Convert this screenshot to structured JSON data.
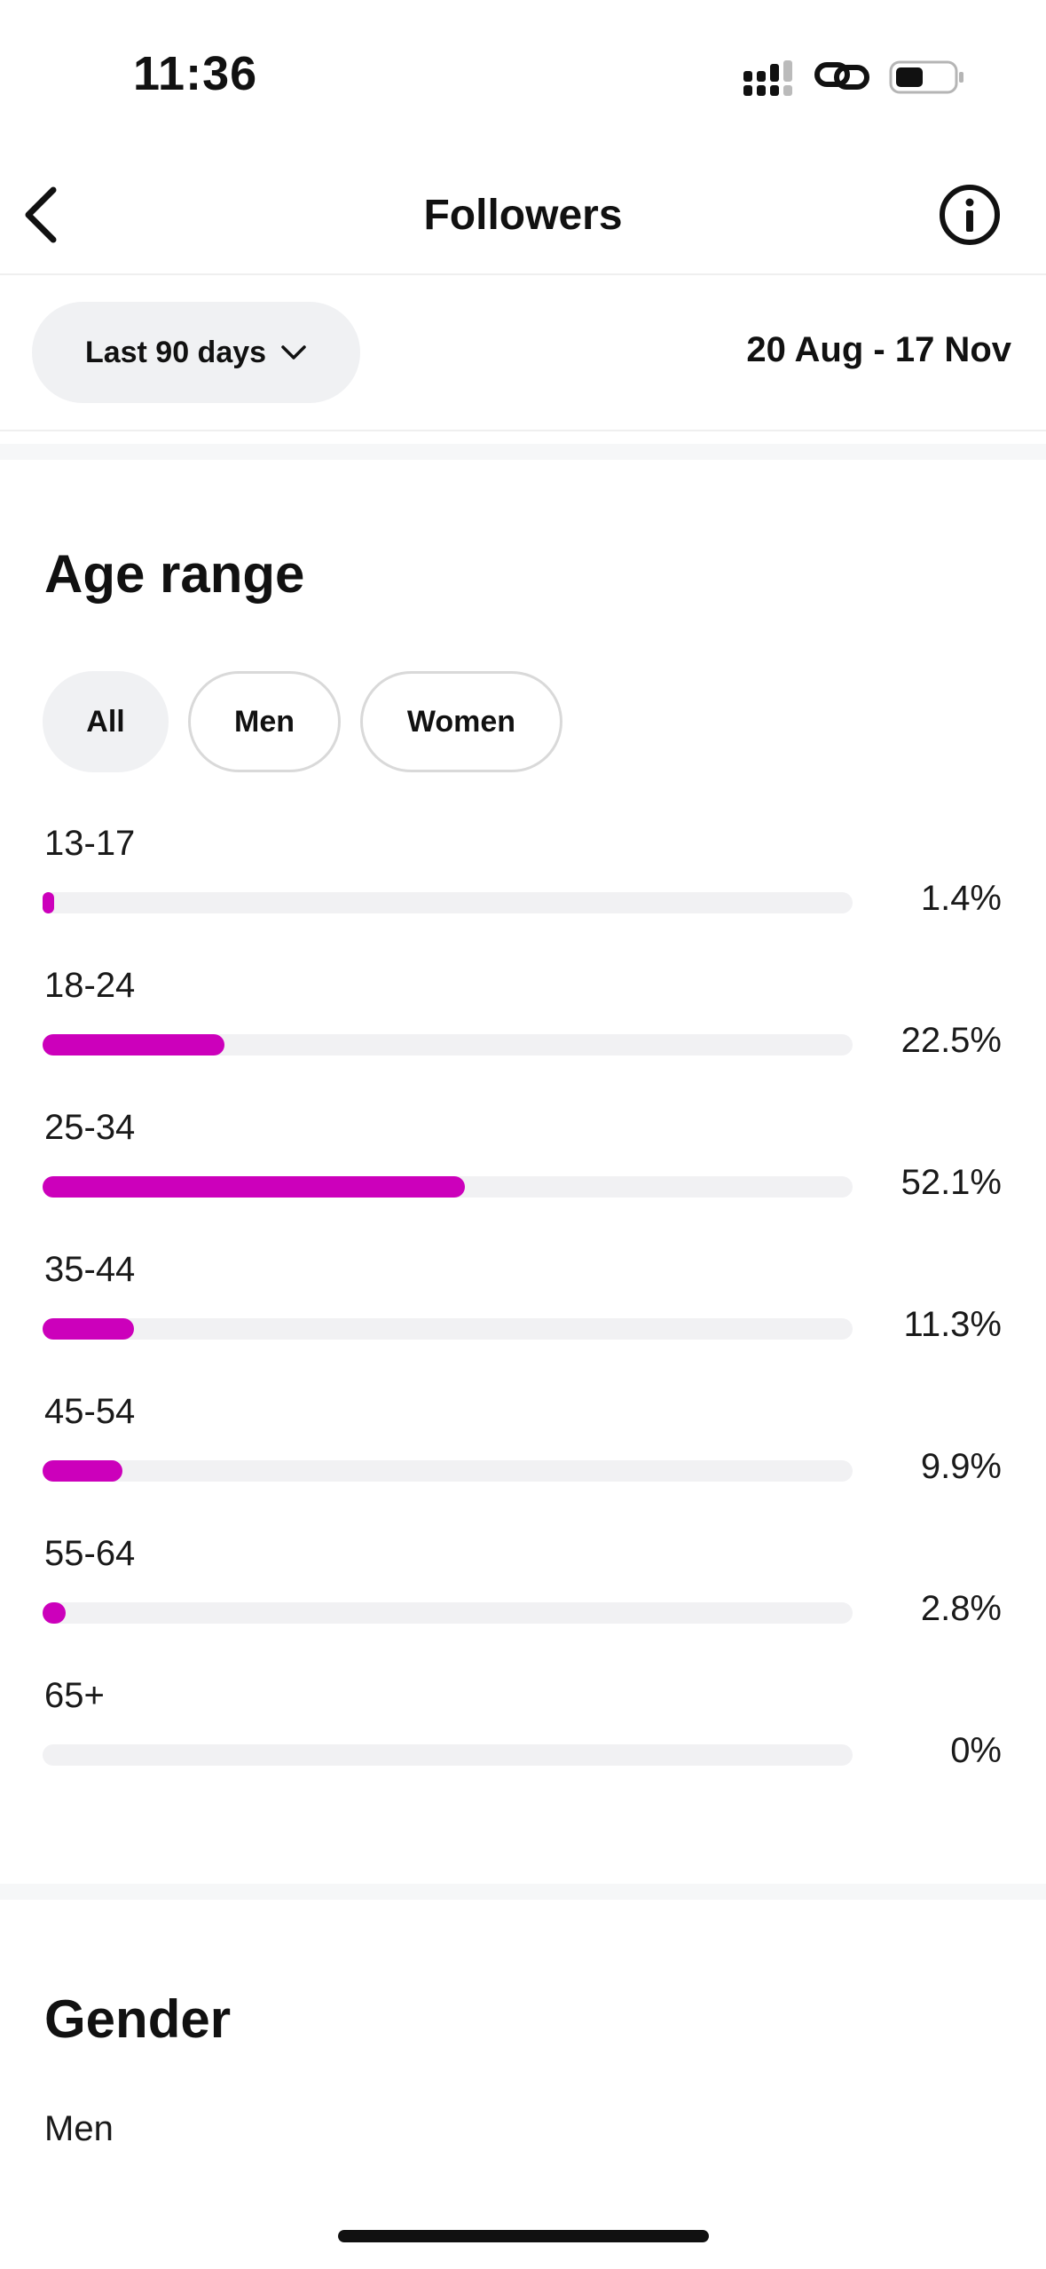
{
  "status_bar": {
    "time": "11:36"
  },
  "header": {
    "title": "Followers"
  },
  "filters": {
    "range_label": "Last 90 days",
    "date_range": "20 Aug - 17 Nov"
  },
  "age_section": {
    "title": "Age range",
    "segments": [
      "All",
      "Men",
      "Women"
    ],
    "selected_segment": "All",
    "bar_color": "#cc00bb",
    "rows": [
      {
        "label": "13-17",
        "value": 1.4,
        "text": "1.4%"
      },
      {
        "label": "18-24",
        "value": 22.5,
        "text": "22.5%"
      },
      {
        "label": "25-34",
        "value": 52.1,
        "text": "52.1%"
      },
      {
        "label": "35-44",
        "value": 11.3,
        "text": "11.3%"
      },
      {
        "label": "45-54",
        "value": 9.9,
        "text": "9.9%"
      },
      {
        "label": "55-64",
        "value": 2.8,
        "text": "2.8%"
      },
      {
        "label": "65+",
        "value": 0,
        "text": "0%"
      }
    ]
  },
  "gender_section": {
    "title": "Gender",
    "first_label": "Men"
  }
}
